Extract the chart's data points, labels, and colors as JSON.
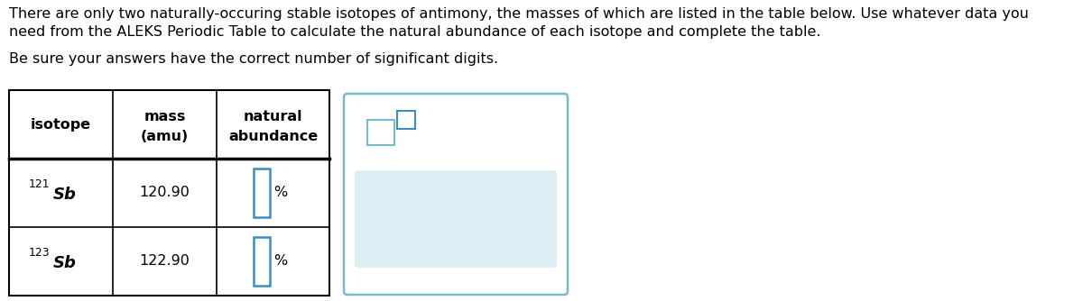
{
  "title_line1": "There are only two naturally-occuring stable isotopes of antimony, the masses of which are listed in the table below. Use whatever data you",
  "title_line2": "need from the ALEKS Periodic Table to calculate the natural abundance of each isotope and complete the table.",
  "subtitle": "Be sure your answers have the correct number of significant digits.",
  "isotope_col": [
    [
      "121",
      "Sb"
    ],
    [
      "123",
      "Sb"
    ]
  ],
  "mass_col": [
    "120.90",
    "122.90"
  ],
  "text_color": "#000000",
  "bg_color": "#ffffff",
  "input_box_color": "#3a8fc0",
  "widget_border_color": "#7ab8cc",
  "widget_bg": "#ffffff",
  "btn_area_color": "#ddeef5",
  "btn_text_color": "#5599bb"
}
